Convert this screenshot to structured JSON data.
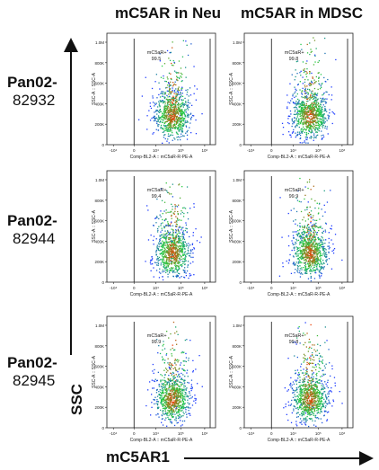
{
  "column_titles": [
    "mC5AR in Neu",
    "mC5AR in MDSC"
  ],
  "row_labels": [
    {
      "name": "Pan02-",
      "id": "82932"
    },
    {
      "name": "Pan02-",
      "id": "82944"
    },
    {
      "name": "Pan02-",
      "id": "82945"
    }
  ],
  "y_axis_title": "SSC",
  "x_axis_title": "mC5AR1",
  "colors": {
    "scatter_low": "#1e3cff",
    "scatter_mid": "#20d040",
    "scatter_high": "#ff3000",
    "axis": "#222222",
    "gate": "#111111"
  },
  "chart_data": [
    {
      "type": "scatter",
      "gate_label": "mC5aR+",
      "gate_percent": "99.5",
      "xlabel": "Comp-BL2-A :: mC5aR-R-PE-A",
      "ylabel": "SSC-A :: SSC-A",
      "xticks": [
        "-10⁴",
        "0",
        "10⁴",
        "10⁵",
        "10⁶"
      ],
      "yticks": [
        "0",
        "200K",
        "400K",
        "600K",
        "800K",
        "1.0M"
      ],
      "ylim": [
        0,
        1000000
      ]
    },
    {
      "type": "scatter",
      "gate_label": "mC5aR+",
      "gate_percent": "99.8",
      "xlabel": "Comp-BL2-A :: mC5aR-R-PE-A",
      "ylabel": "SSC-A :: SSC-A",
      "xticks": [
        "-10⁴",
        "0",
        "10⁴",
        "10⁵",
        "10⁶"
      ],
      "yticks": [
        "0",
        "200K",
        "400K",
        "600K",
        "800K",
        "1.0M"
      ],
      "ylim": [
        0,
        1000000
      ]
    },
    {
      "type": "scatter",
      "gate_label": "mC5aR+",
      "gate_percent": "99.4",
      "xlabel": "Comp-BL2-A :: mC5aR-R-PE-A",
      "ylabel": "SSC-A :: SSC-A",
      "xticks": [
        "-10⁴",
        "0",
        "10⁴",
        "10⁵",
        "10⁶"
      ],
      "yticks": [
        "0",
        "200K",
        "400K",
        "600K",
        "800K",
        "1.0M"
      ],
      "ylim": [
        0,
        1000000
      ]
    },
    {
      "type": "scatter",
      "gate_label": "mC5aR+",
      "gate_percent": "99.9",
      "xlabel": "Comp-BL2-A :: mC5aR-R-PE-A",
      "ylabel": "SSC-A :: SSC-A",
      "xticks": [
        "-10⁴",
        "0",
        "10⁴",
        "10⁵",
        "10⁶"
      ],
      "yticks": [
        "0",
        "200K",
        "400K",
        "600K",
        "800K",
        "1.0M"
      ],
      "ylim": [
        0,
        1000000
      ]
    },
    {
      "type": "scatter",
      "gate_label": "mC5aR+",
      "gate_percent": "99.9",
      "xlabel": "Comp-BL2-A :: mC5aR-R-PE-A",
      "ylabel": "SSC-A :: SSC-A",
      "xticks": [
        "-10⁴",
        "0",
        "10⁴",
        "10⁵",
        "10⁶"
      ],
      "yticks": [
        "0",
        "200K",
        "400K",
        "600K",
        "800K",
        "1.0M"
      ],
      "ylim": [
        0,
        1000000
      ]
    },
    {
      "type": "scatter",
      "gate_label": "mC5aR+",
      "gate_percent": "99.8",
      "xlabel": "Comp-BL2-A :: mC5aR-R-PE-A",
      "ylabel": "SSC-A :: SSC-A",
      "xticks": [
        "-10⁴",
        "0",
        "10⁴",
        "10⁵",
        "10⁶"
      ],
      "yticks": [
        "0",
        "200K",
        "400K",
        "600K",
        "800K",
        "1.0M"
      ],
      "ylim": [
        0,
        1000000
      ]
    }
  ]
}
